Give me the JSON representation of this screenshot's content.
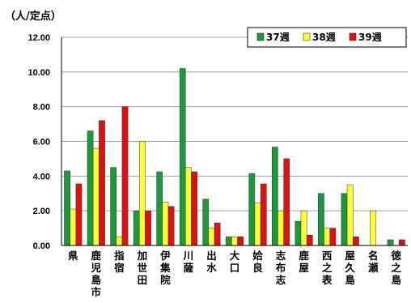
{
  "chart_data": {
    "type": "bar",
    "unit_label": "（人/定点）",
    "categories": [
      "県",
      "鹿児島市",
      "指宿",
      "加世田",
      "伊集院",
      "川薩",
      "出水",
      "大口",
      "姶良",
      "志布志",
      "鹿屋",
      "西之表",
      "屋久島",
      "名瀬",
      "徳之島"
    ],
    "series": [
      {
        "name": "37週",
        "color": "#1a9a3a",
        "values": [
          4.3,
          6.6,
          4.5,
          2.0,
          4.25,
          10.2,
          2.67,
          0.5,
          4.15,
          5.67,
          1.4,
          3.0,
          3.0,
          0.0,
          0.33
        ]
      },
      {
        "name": "38週",
        "color": "#ffff33",
        "values": [
          2.1,
          5.6,
          0.5,
          6.0,
          2.5,
          4.5,
          1.0,
          0.5,
          2.45,
          2.0,
          2.0,
          1.0,
          3.5,
          2.0,
          0.0
        ]
      },
      {
        "name": "39週",
        "color": "#dd1111",
        "values": [
          3.55,
          7.2,
          8.0,
          2.0,
          2.25,
          4.25,
          1.3,
          0.5,
          3.55,
          5.0,
          0.6,
          1.0,
          0.5,
          0.0,
          0.33
        ]
      }
    ],
    "y_ticks": [
      "0.00",
      "2.00",
      "4.00",
      "6.00",
      "8.00",
      "10.00",
      "12.00"
    ],
    "ylim": [
      0,
      12
    ],
    "grid": true,
    "legend_position": "top-right"
  }
}
